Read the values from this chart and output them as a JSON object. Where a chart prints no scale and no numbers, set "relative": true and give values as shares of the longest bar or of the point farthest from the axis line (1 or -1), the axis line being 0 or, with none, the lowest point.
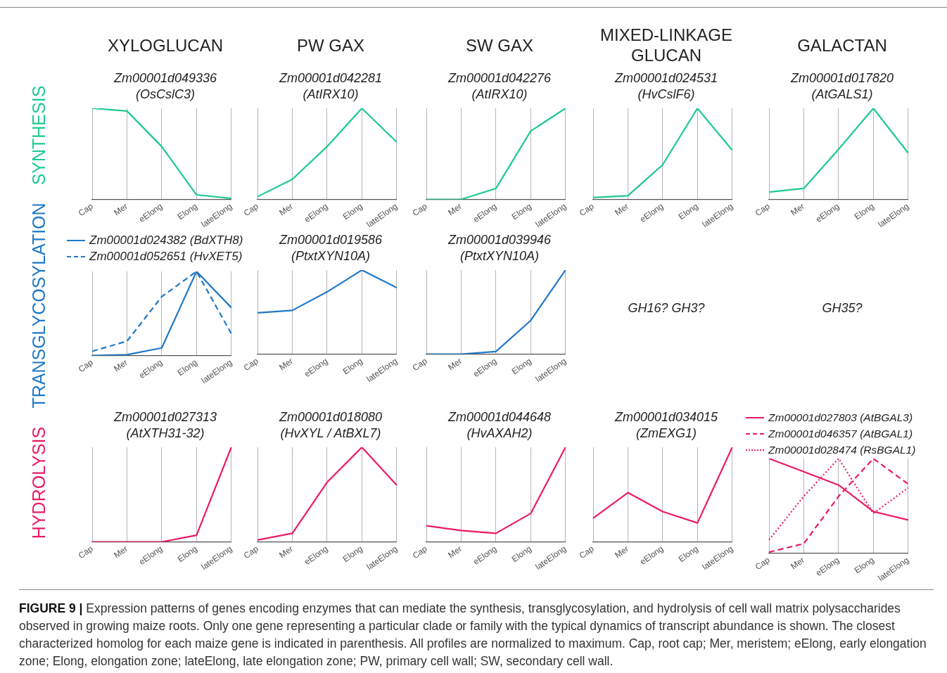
{
  "chart_data": [
    {
      "type": "line",
      "title": "XYLOGLUCAN",
      "subtitle": "Zm00001d049336\n(OsCslC3)",
      "ylabel": "SYNTHESIS",
      "relative": true,
      "grid": "x",
      "categories": [
        "Cap",
        "Mer",
        "eElong",
        "Elong",
        "lateElong"
      ],
      "series": [
        {
          "color": "#1ec98f",
          "values": [
            1,
            0.97,
            0.58,
            0.05,
            0.01
          ]
        }
      ]
    },
    {
      "type": "line",
      "title": "PW GAX",
      "subtitle": "Zm00001d042281\n(AtIRX10)",
      "relative": true,
      "grid": "x",
      "categories": [
        "Cap",
        "Mer",
        "eElong",
        "Elong",
        "lateElong"
      ],
      "series": [
        {
          "color": "#1ec98f",
          "values": [
            0.03,
            0.22,
            0.58,
            1,
            0.63
          ]
        }
      ]
    },
    {
      "type": "line",
      "title": "SW GAX",
      "subtitle": "Zm00001d042276\n(AtIRX10)",
      "relative": true,
      "grid": "x",
      "categories": [
        "Cap",
        "Mer",
        "eElong",
        "Elong",
        "lateElong"
      ],
      "series": [
        {
          "color": "#1ec98f",
          "values": [
            0,
            0,
            0.12,
            0.75,
            1
          ]
        }
      ]
    },
    {
      "type": "line",
      "title": "MIXED-LINKAGE GLUCAN",
      "subtitle": "Zm00001d024531\n(HvCslF6)",
      "relative": true,
      "grid": "x",
      "categories": [
        "Cap",
        "Mer",
        "eElong",
        "Elong",
        "lateElong"
      ],
      "series": [
        {
          "color": "#1ec98f",
          "values": [
            0.02,
            0.04,
            0.38,
            1,
            0.54
          ]
        }
      ]
    },
    {
      "type": "line",
      "title": "GALACTAN",
      "subtitle": "Zm00001d017820\n(AtGALS1)",
      "relative": true,
      "grid": "x",
      "categories": [
        "Cap",
        "Mer",
        "eElong",
        "Elong",
        "lateElong"
      ],
      "series": [
        {
          "color": "#1ec98f",
          "values": [
            0.08,
            0.12,
            0.55,
            1,
            0.51
          ]
        }
      ]
    },
    {
      "type": "line",
      "ylabel": "TRANSGLYCOSYLATION",
      "relative": true,
      "grid": "x",
      "legend": "top",
      "categories": [
        "Cap",
        "Mer",
        "eElong",
        "Elong",
        "lateElong"
      ],
      "series": [
        {
          "name": "Zm00001d024382  (BdXTH8)",
          "color": "#1f78c8",
          "values": [
            0,
            0.01,
            0.09,
            1,
            0.57
          ]
        },
        {
          "name": "Zm00001d052651  (HvXET5)",
          "color": "#1f78c8",
          "line_style": "dashed",
          "values": [
            0.05,
            0.17,
            0.7,
            1,
            0.26
          ]
        }
      ]
    },
    {
      "type": "line",
      "subtitle": "Zm00001d019586\n(PtxtXYN10A)",
      "relative": true,
      "grid": "x",
      "categories": [
        "Cap",
        "Mer",
        "eElong",
        "Elong",
        "lateElong"
      ],
      "series": [
        {
          "color": "#1f78c8",
          "values": [
            0.49,
            0.52,
            0.74,
            1,
            0.79
          ]
        }
      ]
    },
    {
      "type": "line",
      "subtitle": "Zm00001d039946\n(PtxtXYN10A)",
      "relative": true,
      "grid": "x",
      "categories": [
        "Cap",
        "Mer",
        "eElong",
        "Elong",
        "lateElong"
      ],
      "series": [
        {
          "color": "#1f78c8",
          "values": [
            0,
            0,
            0.03,
            0.4,
            1
          ]
        }
      ]
    },
    {
      "type": "other",
      "annotations": [
        "GH16? GH3?"
      ]
    },
    {
      "type": "other",
      "annotations": [
        "GH35?"
      ]
    },
    {
      "type": "line",
      "subtitle": "Zm00001d027313\n(AtXTH31-32)",
      "ylabel": "HYDROLYSIS",
      "relative": true,
      "grid": "x",
      "categories": [
        "Cap",
        "Mer",
        "eElong",
        "Elong",
        "lateElong"
      ],
      "series": [
        {
          "color": "#ec1a63",
          "values": [
            0,
            0,
            0,
            0.07,
            1
          ]
        }
      ]
    },
    {
      "type": "line",
      "subtitle": "Zm00001d018080\n(HvXYL / AtBXL7)",
      "relative": true,
      "grid": "x",
      "categories": [
        "Cap",
        "Mer",
        "eElong",
        "Elong",
        "lateElong"
      ],
      "series": [
        {
          "color": "#ec1a63",
          "values": [
            0.02,
            0.09,
            0.63,
            1,
            0.6
          ]
        }
      ]
    },
    {
      "type": "line",
      "subtitle": "Zm00001d044648\n(HvAXAH2)",
      "relative": true,
      "grid": "x",
      "categories": [
        "Cap",
        "Mer",
        "eElong",
        "Elong",
        "lateElong"
      ],
      "series": [
        {
          "color": "#ec1a63",
          "values": [
            0.17,
            0.12,
            0.09,
            0.3,
            1
          ]
        }
      ]
    },
    {
      "type": "line",
      "subtitle": "Zm00001d034015\n(ZmEXG1)",
      "relative": true,
      "grid": "x",
      "categories": [
        "Cap",
        "Mer",
        "eElong",
        "Elong",
        "lateElong"
      ],
      "series": [
        {
          "color": "#ec1a63",
          "values": [
            0.25,
            0.52,
            0.32,
            0.2,
            1
          ]
        }
      ]
    },
    {
      "type": "line",
      "relative": true,
      "grid": "x",
      "legend": "top",
      "categories": [
        "Cap",
        "Mer",
        "eElong",
        "Elong",
        "lateElong"
      ],
      "series": [
        {
          "name": "Zm00001d027803 (AtBGAL3)",
          "color": "#ec1a63",
          "values": [
            1,
            0.86,
            0.72,
            0.44,
            0.35
          ]
        },
        {
          "name": "Zm00001d046357 (AtBGAL1)",
          "color": "#ec1a63",
          "line_style": "dashed",
          "values": [
            0.01,
            0.1,
            0.6,
            1,
            0.73
          ]
        },
        {
          "name": "Zm00001d028474 (RsBGAL1)",
          "color": "#ec1a63",
          "line_style": "dotted",
          "values": [
            0.14,
            0.6,
            1,
            0.42,
            0.69
          ]
        }
      ]
    },
    {
      "type": "other",
      "annotations": [
        "FIGURE 9 |",
        "Expression patterns of genes encoding enzymes that can mediate the synthesis, transglycosylation, and hydrolysis of cell wall matrix polysaccharides observed in growing maize roots. Only one gene representing a particular clade or family with the typical dynamics of transcript abundance is shown. The closest characterized homolog for each maize gene is indicated in parenthesis. All profiles are normalized to maximum. Cap, root cap; Mer, meristem; eElong, early elongation zone; Elong, elongation zone; lateElong, late elongation zone; PW, primary cell wall; SW, secondary cell wall."
      ]
    }
  ]
}
